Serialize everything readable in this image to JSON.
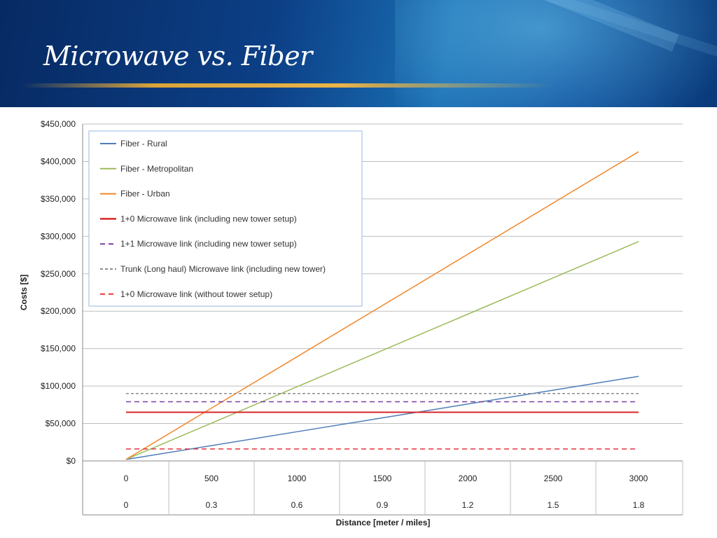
{
  "slide": {
    "title": "Microwave vs. Fiber"
  },
  "chart_data": {
    "type": "line",
    "title": "",
    "xlabel": "Distance [meter / miles]",
    "ylabel": "Costs [$]",
    "x": [
      0,
      500,
      1000,
      1500,
      2000,
      2500,
      3000
    ],
    "x_secondary_labels": [
      "0",
      "0.3",
      "0.6",
      "0.9",
      "1.2",
      "1.5",
      "1.8"
    ],
    "x_tick_labels": [
      "0",
      "500",
      "1000",
      "1500",
      "2000",
      "2500",
      "3000"
    ],
    "ylim": [
      0,
      450000
    ],
    "y_ticks": [
      0,
      50000,
      100000,
      150000,
      200000,
      250000,
      300000,
      350000,
      400000,
      450000
    ],
    "y_tick_labels": [
      "$0",
      "$50,000",
      "$100,000",
      "$150,000",
      "$200,000",
      "$250,000",
      "$300,000",
      "$350,000",
      "$400,000",
      "$450,000"
    ],
    "grid": true,
    "legend_position": "top-left",
    "series": [
      {
        "name": "Fiber - Rural",
        "color": "#4f7db8",
        "dash": "solid",
        "width": 1.5,
        "values": [
          2000,
          20500,
          39000,
          57500,
          76000,
          94500,
          113000
        ]
      },
      {
        "name": "Fiber - Metropolitan",
        "color": "#9bbb59",
        "dash": "solid",
        "width": 1.5,
        "values": [
          2000,
          50500,
          99000,
          147500,
          196000,
          244500,
          293000
        ]
      },
      {
        "name": "Fiber - Urban",
        "color": "#f0872a",
        "dash": "solid",
        "width": 1.5,
        "values": [
          2000,
          70500,
          139000,
          207500,
          276000,
          344500,
          413000
        ]
      },
      {
        "name": "1+0 Microwave link (including new tower setup)",
        "color": "#d9262a",
        "dash": "solid",
        "width": 2,
        "values": [
          65000,
          65000,
          65000,
          65000,
          65000,
          65000,
          65000
        ]
      },
      {
        "name": "1+1 Microwave link (including new tower setup)",
        "color": "#7a3fa0",
        "dash": "dashed",
        "width": 1.5,
        "values": [
          79000,
          79000,
          79000,
          79000,
          79000,
          79000,
          79000
        ]
      },
      {
        "name": "Trunk (Long haul) Microwave link (including new tower)",
        "color": "#8c8c8c",
        "dash": "dashed-fine",
        "width": 1.5,
        "values": [
          90000,
          90000,
          90000,
          90000,
          90000,
          90000,
          90000
        ]
      },
      {
        "name": "1+0 Microwave link (without tower setup)",
        "color": "#e8333a",
        "dash": "dashed",
        "width": 1.5,
        "values": [
          16000,
          16000,
          16000,
          16000,
          16000,
          16000,
          16000
        ]
      }
    ]
  }
}
